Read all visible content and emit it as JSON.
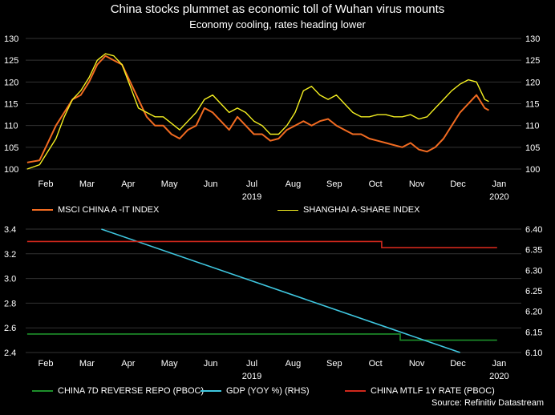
{
  "title": "China stocks plummet as economic toll of Wuhan virus mounts",
  "subtitle": "Economy cooling, rates heading lower",
  "source": "Source: Refinitiv Datastream",
  "colors": {
    "msci": "#f26b21",
    "shanghai": "#f5f021",
    "repo": "#1d8f2a",
    "gdp": "#3fc7e0",
    "mtlf": "#d0281c"
  },
  "chart_data": [
    {
      "type": "line",
      "x_tick_labels": [
        "Feb",
        "Mar",
        "Apr",
        "May",
        "Jun",
        "Jul",
        "Aug",
        "Sep",
        "Oct",
        "Nov",
        "Dec",
        "Jan"
      ],
      "x_year_labels": [
        "2019",
        "2020"
      ],
      "ylim": [
        100,
        130
      ],
      "y_ticks": [
        "100",
        "105",
        "110",
        "115",
        "120",
        "125",
        "130"
      ],
      "grid": true,
      "legend_position": "bottom",
      "series": [
        {
          "name": "MSCI CHINA A -IT INDEX",
          "color": "#f26b21",
          "x": [
            0,
            0.3,
            0.5,
            0.7,
            0.9,
            1.1,
            1.3,
            1.5,
            1.7,
            1.9,
            2.1,
            2.3,
            2.5,
            2.7,
            2.9,
            3.1,
            3.3,
            3.5,
            3.7,
            3.9,
            4.1,
            4.3,
            4.5,
            4.7,
            4.9,
            5.1,
            5.3,
            5.5,
            5.7,
            5.9,
            6.1,
            6.3,
            6.5,
            6.7,
            6.9,
            7.1,
            7.3,
            7.5,
            7.7,
            7.9,
            8.1,
            8.3,
            8.5,
            8.7,
            8.9,
            9.1,
            9.3,
            9.5,
            9.7,
            9.9,
            10.1,
            10.3,
            10.5,
            10.7,
            10.9,
            11.1,
            11.2
          ],
          "y": [
            101.5,
            102,
            106,
            110,
            113,
            116,
            117,
            120,
            124,
            126,
            125,
            124,
            120,
            116,
            112,
            110,
            110,
            108,
            107,
            109,
            110,
            114,
            113,
            111,
            109,
            112,
            110,
            108,
            108,
            106.5,
            107,
            109,
            110,
            111,
            110,
            111,
            111.5,
            110,
            109,
            108,
            108,
            107,
            106.5,
            106,
            105.5,
            105,
            106,
            104.5,
            104,
            105,
            107,
            110,
            113,
            115,
            117,
            114,
            113.5
          ]
        },
        {
          "name": "SHANGHAI A-SHARE INDEX",
          "color": "#f5f021",
          "x": [
            0,
            0.3,
            0.5,
            0.7,
            0.9,
            1.1,
            1.3,
            1.5,
            1.7,
            1.9,
            2.1,
            2.3,
            2.5,
            2.7,
            2.9,
            3.1,
            3.3,
            3.5,
            3.7,
            3.9,
            4.1,
            4.3,
            4.5,
            4.7,
            4.9,
            5.1,
            5.3,
            5.5,
            5.7,
            5.9,
            6.1,
            6.3,
            6.5,
            6.7,
            6.9,
            7.1,
            7.3,
            7.5,
            7.7,
            7.9,
            8.1,
            8.3,
            8.5,
            8.7,
            8.9,
            9.1,
            9.3,
            9.5,
            9.7,
            9.9,
            10.1,
            10.3,
            10.5,
            10.7,
            10.9,
            11.1,
            11.2
          ],
          "y": [
            100,
            101,
            104,
            107,
            112,
            116,
            118,
            121,
            125,
            126.5,
            126,
            124,
            119,
            114,
            113,
            112,
            112,
            110.5,
            109,
            111,
            113,
            116,
            117,
            115,
            113,
            114,
            113,
            111,
            110,
            108,
            108,
            110,
            113,
            118,
            119,
            117,
            116,
            117,
            115,
            113,
            112,
            112,
            112.5,
            112.5,
            112,
            112,
            112.5,
            111.5,
            112,
            114,
            116,
            118,
            119.5,
            120.5,
            120,
            116,
            115.5
          ]
        }
      ]
    },
    {
      "type": "line",
      "x_tick_labels": [
        "Feb",
        "Mar",
        "Apr",
        "May",
        "Jun",
        "Jul",
        "Aug",
        "Sep",
        "Oct",
        "Nov",
        "Dec",
        "Jan"
      ],
      "x_year_labels": [
        "2019",
        "2020"
      ],
      "ylim_left": [
        2.4,
        3.4
      ],
      "y_ticks_left": [
        "2.4",
        "2.6",
        "2.8",
        "3.0",
        "3.2",
        "3.4"
      ],
      "ylim_right": [
        6.1,
        6.4
      ],
      "y_ticks_right": [
        "6.10",
        "6.15",
        "6.20",
        "6.25",
        "6.30",
        "6.35",
        "6.40"
      ],
      "grid": true,
      "legend_position": "bottom",
      "series": [
        {
          "name": "CHINA 7D REVERSE REPO (PBOC)",
          "color": "#1d8f2a",
          "axis": "left",
          "x": [
            0,
            9.05,
            9.05,
            11.4
          ],
          "y": [
            2.55,
            2.55,
            2.5,
            2.5
          ]
        },
        {
          "name": "GDP (YOY %) (RHS)",
          "color": "#3fc7e0",
          "axis": "right",
          "x": [
            1.8,
            10.5
          ],
          "y": [
            6.4,
            6.1
          ]
        },
        {
          "name": "CHINA MTLF 1Y RATE (PBOC)",
          "color": "#d0281c",
          "axis": "left",
          "x": [
            0,
            8.6,
            8.6,
            11.4
          ],
          "y": [
            3.3,
            3.3,
            3.25,
            3.25
          ]
        }
      ]
    }
  ]
}
